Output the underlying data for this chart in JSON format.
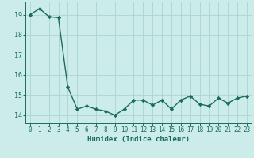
{
  "x": [
    0,
    1,
    2,
    3,
    4,
    5,
    6,
    7,
    8,
    9,
    10,
    11,
    12,
    13,
    14,
    15,
    16,
    17,
    18,
    19,
    20,
    21,
    22,
    23
  ],
  "y": [
    19.0,
    19.3,
    18.9,
    18.85,
    15.4,
    14.3,
    14.45,
    14.3,
    14.2,
    14.0,
    14.3,
    14.75,
    14.75,
    14.5,
    14.75,
    14.3,
    14.75,
    14.95,
    14.55,
    14.45,
    14.85,
    14.6,
    14.85,
    14.95
  ],
  "line_color": "#1a6b5a",
  "bg_color": "#ccecea",
  "grid_color": "#aad4d2",
  "xlabel": "Humidex (Indice chaleur)",
  "yticks": [
    14,
    15,
    16,
    17,
    18,
    19
  ],
  "ylim": [
    13.6,
    19.65
  ],
  "xlim": [
    -0.5,
    23.5
  ],
  "marker": "D",
  "marker_size": 2.2,
  "line_width": 1.0,
  "tick_fontsize": 5.5,
  "xlabel_fontsize": 6.5
}
